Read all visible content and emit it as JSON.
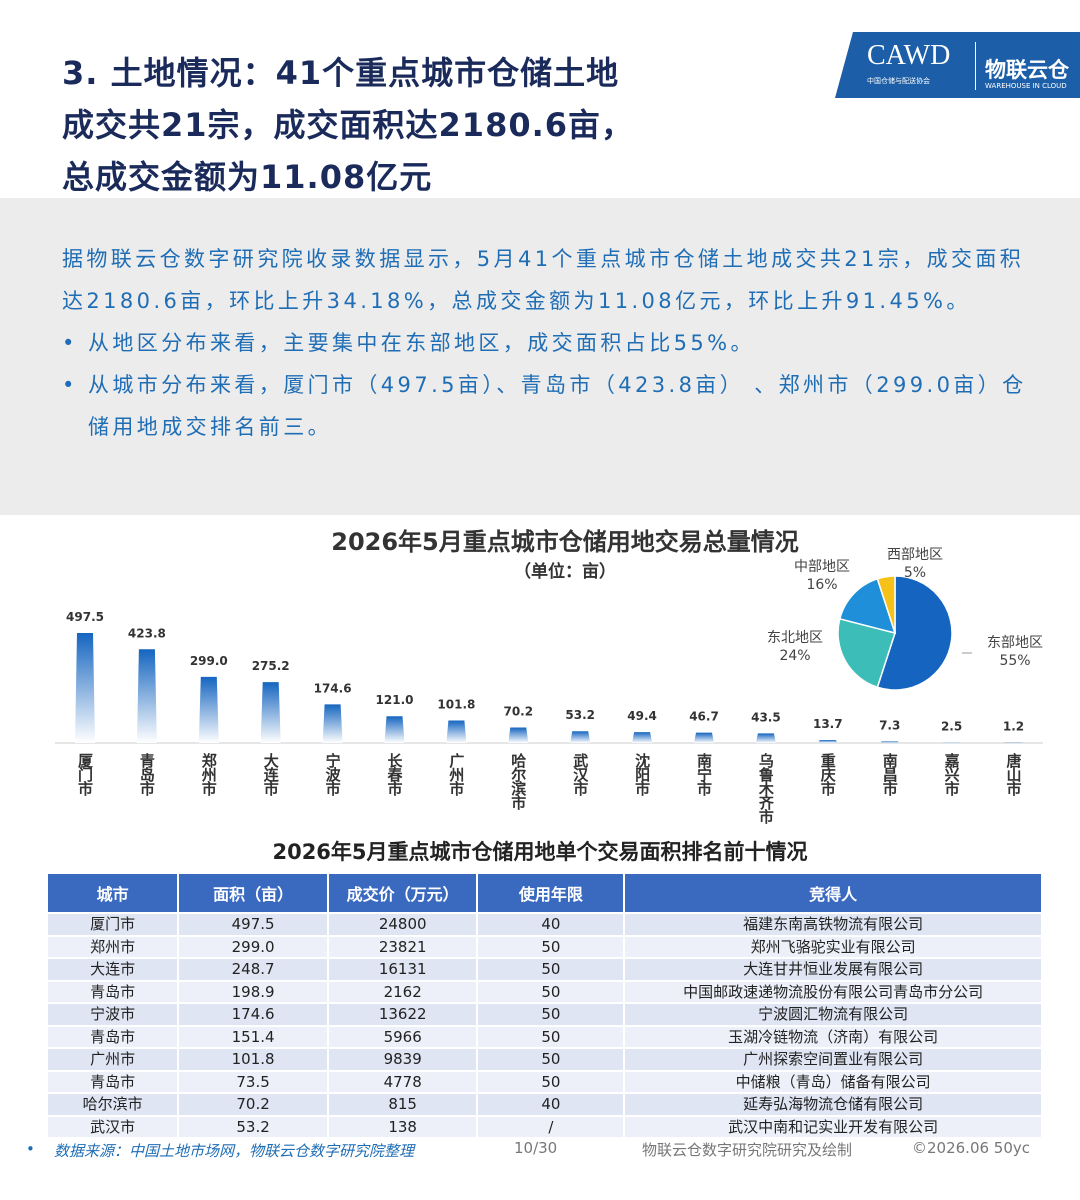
{
  "header": {
    "title_lines": [
      "3. 土地情况：41个重点城市仓储土地",
      "成交共21宗，成交面积达2180.6亩，",
      "总成交金额为11.08亿元"
    ],
    "logo": {
      "cawd": "CAWD",
      "cawd_sub": "中国仓储与配送协会",
      "wic": "物联云仓",
      "wic_sub": "WAREHOUSE IN CLOUD"
    }
  },
  "summary": {
    "paragraph": "据物联云仓数字研究院收录数据显示，5月41个重点城市仓储土地成交共21宗，成交面积达2180.6亩，环比上升34.18%，总成交金额为11.08亿元，环比上升91.45%。",
    "bullets": [
      "从地区分布来看，主要集中在东部地区，成交面积占比55%。",
      "从城市分布来看，厦门市（497.5亩）、青岛市（423.8亩） 、郑州市（299.0亩）仓储用地成交排名前三。"
    ]
  },
  "chart_data": [
    {
      "type": "bar",
      "title": "2026年5月重点城市仓储用地交易总量情况",
      "subtitle": "（单位：亩）",
      "color": "#1a6fc4",
      "categories": [
        "厦门市",
        "青岛市",
        "郑州市",
        "大连市",
        "宁波市",
        "长春市",
        "广州市",
        "哈尔滨市",
        "武汉市",
        "沈阳市",
        "南宁市",
        "乌鲁木齐市",
        "重庆市",
        "南昌市",
        "嘉兴市",
        "唐山市"
      ],
      "values": [
        497.5,
        423.8,
        299.0,
        275.2,
        174.6,
        121.0,
        101.8,
        70.2,
        53.2,
        49.4,
        46.7,
        43.5,
        13.7,
        7.3,
        2.5,
        1.2
      ],
      "value_labels": [
        "497.5",
        "423.8",
        "299.0",
        "275.2",
        "174.6",
        "121.0",
        "101.8",
        "70.2",
        "53.2",
        "49.4",
        "46.7",
        "43.5",
        "13.7",
        "7.3",
        "2.5",
        "1.2"
      ]
    },
    {
      "type": "pie",
      "categories": [
        "东部地区",
        "东北地区",
        "中部地区",
        "西部地区"
      ],
      "values": [
        55,
        24,
        16,
        5
      ],
      "value_labels": [
        "55%",
        "24%",
        "16%",
        "5%"
      ],
      "colors": [
        "#1565c0",
        "#3dbdb8",
        "#1e8fd8",
        "#f6c21a"
      ]
    }
  ],
  "table": {
    "title": "2026年5月重点城市仓储用地单个交易面积排名前十情况",
    "columns": [
      "城市",
      "面积（亩）",
      "成交价（万元）",
      "使用年限",
      "竞得人"
    ],
    "rows": [
      [
        "厦门市",
        "497.5",
        "24800",
        "40",
        "福建东南高铁物流有限公司"
      ],
      [
        "郑州市",
        "299.0",
        "23821",
        "50",
        "郑州飞骆驼实业有限公司"
      ],
      [
        "大连市",
        "248.7",
        "16131",
        "50",
        "大连甘井恒业发展有限公司"
      ],
      [
        "青岛市",
        "198.9",
        "2162",
        "50",
        "中国邮政速递物流股份有限公司青岛市分公司"
      ],
      [
        "宁波市",
        "174.6",
        "13622",
        "50",
        "宁波圆汇物流有限公司"
      ],
      [
        "青岛市",
        "151.4",
        "5966",
        "50",
        "玉湖冷链物流（济南）有限公司"
      ],
      [
        "广州市",
        "101.8",
        "9839",
        "50",
        "广州探索空间置业有限公司"
      ],
      [
        "青岛市",
        "73.5",
        "4778",
        "50",
        "中储粮（青岛）储备有限公司"
      ],
      [
        "哈尔滨市",
        "70.2",
        "815",
        "40",
        "延寿弘海物流仓储有限公司"
      ],
      [
        "武汉市",
        "53.2",
        "138",
        "/",
        "武汉中南和记实业开发有限公司"
      ]
    ]
  },
  "footer": {
    "source": "数据来源：中国土地市场网，物联云仓数字研究院整理",
    "page": "10/30",
    "credit": "物联云仓数字研究院研究及绘制",
    "copyright": "©2026.06 50yc"
  }
}
